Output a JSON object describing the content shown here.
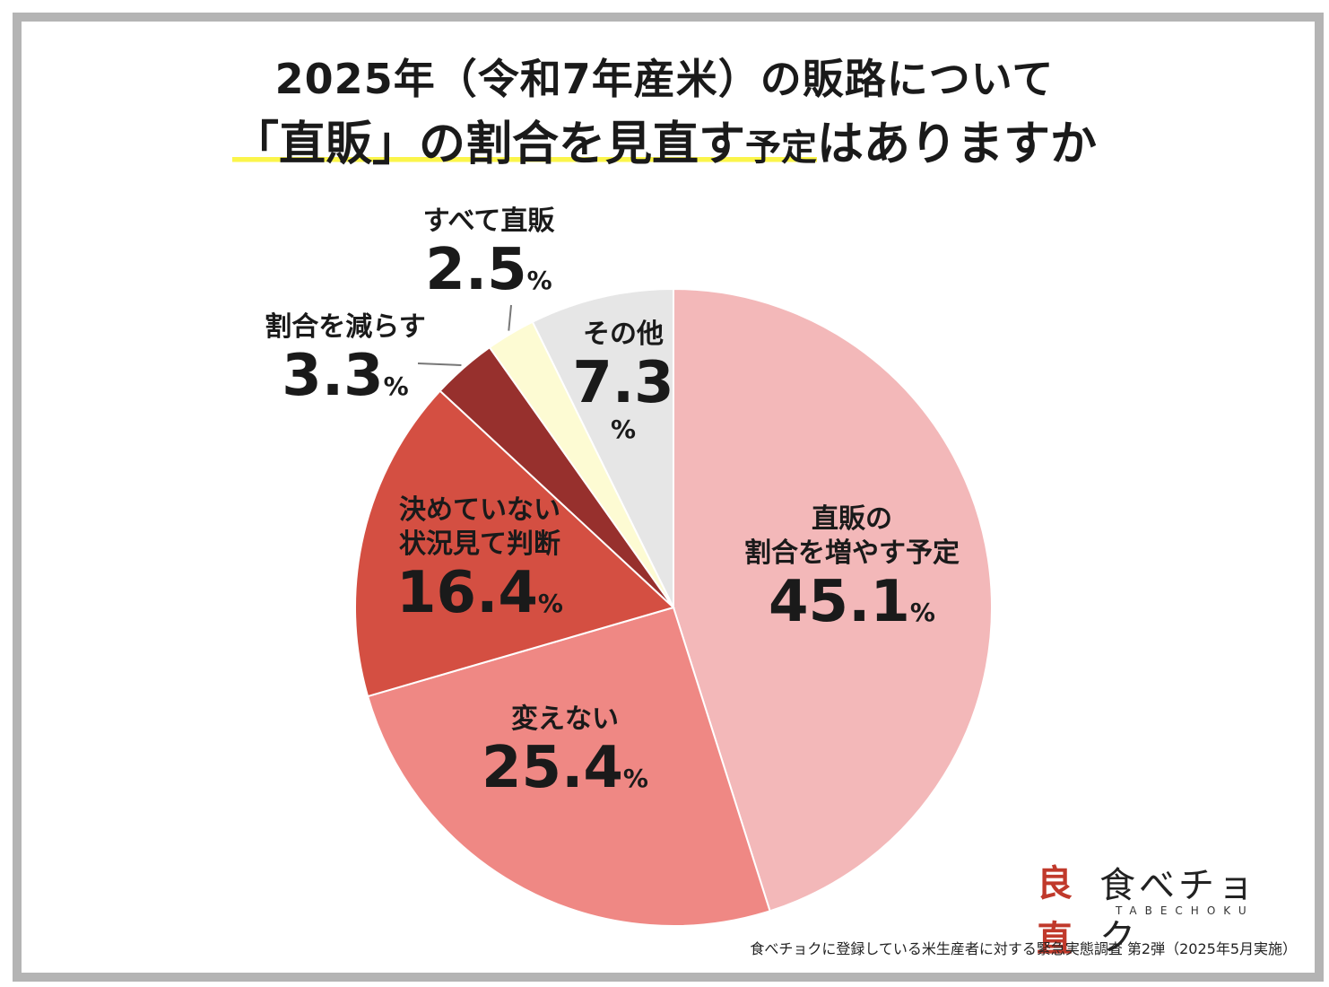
{
  "title": {
    "line1": "2025年（令和7年産米）の販路について",
    "line2_highlight_big": "「直販」の割合を見直す",
    "line2_highlight_small": "予定",
    "line2_rest": "はありますか"
  },
  "colors": {
    "highlight": "#fbf54a",
    "frame": "#b4b4b4",
    "slices": [
      "#f3b8b9",
      "#ef8884",
      "#d44f42",
      "#97302d",
      "#fdfbd3",
      "#e6e6e6"
    ]
  },
  "chart_data": {
    "type": "pie",
    "start": "12 o'clock",
    "direction": "clockwise",
    "unit": "%",
    "slices": [
      {
        "label": "直販の\n割合を増やす予定",
        "value": 45.1,
        "value_text": "45.1",
        "color": "#f3b8b9"
      },
      {
        "label": "変えない",
        "value": 25.4,
        "value_text": "25.4",
        "color": "#ef8884"
      },
      {
        "label": "決めていない\n状況見て判断",
        "value": 16.4,
        "value_text": "16.4",
        "color": "#d44f42"
      },
      {
        "label": "割合を減らす",
        "value": 3.3,
        "value_text": "3.3",
        "color": "#97302d"
      },
      {
        "label": "すべて直販",
        "value": 2.5,
        "value_text": "2.5",
        "color": "#fdfbd3"
      },
      {
        "label": "その他",
        "value": 7.3,
        "value_text": "7.3",
        "color": "#e6e6e6"
      }
    ]
  },
  "logo": {
    "kanji": "良直",
    "name": "食べチョク",
    "roman": "TABECHOKU"
  },
  "footnote": "食べチョクに登録している米生産者に対する緊急実態調査 第2弾（2025年5月実施）"
}
